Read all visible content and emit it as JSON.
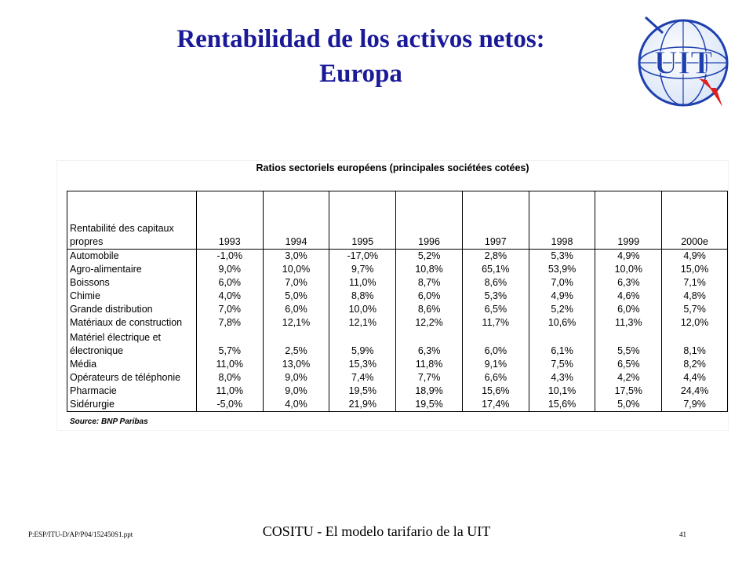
{
  "slide": {
    "title_line1": "Rentabilidad de los activos netos:",
    "title_line2": "Europa"
  },
  "logo": {
    "text": "UIT",
    "icon": "itu-globe-logo-icon",
    "color": "#1e40af",
    "accent": "#e11d1d"
  },
  "table": {
    "caption": "Ratios sectoriels européens (principales sociétées cotées)",
    "header_label": "Rentabilité des capitaux propres",
    "years": [
      "1993",
      "1994",
      "1995",
      "1996",
      "1997",
      "1998",
      "1999",
      "2000e"
    ],
    "rows": [
      {
        "sector": "Automobile",
        "values": [
          "-1,0%",
          "3,0%",
          "-17,0%",
          "5,2%",
          "2,8%",
          "5,3%",
          "4,9%",
          "4,9%"
        ]
      },
      {
        "sector": "Agro-alimentaire",
        "values": [
          "9,0%",
          "10,0%",
          "9,7%",
          "10,8%",
          "65,1%",
          "53,9%",
          "10,0%",
          "15,0%"
        ]
      },
      {
        "sector": "Boissons",
        "values": [
          "6,0%",
          "7,0%",
          "11,0%",
          "8,7%",
          "8,6%",
          "7,0%",
          "6,3%",
          "7,1%"
        ]
      },
      {
        "sector": "Chimie",
        "values": [
          "4,0%",
          "5,0%",
          "8,8%",
          "6,0%",
          "5,3%",
          "4,9%",
          "4,6%",
          "4,8%"
        ]
      },
      {
        "sector": "Grande distribution",
        "values": [
          "7,0%",
          "6,0%",
          "10,0%",
          "8,6%",
          "6,5%",
          "5,2%",
          "6,0%",
          "5,7%"
        ]
      },
      {
        "sector": "Matériaux de construction",
        "values": [
          "7,8%",
          "12,1%",
          "12,1%",
          "12,2%",
          "11,7%",
          "10,6%",
          "11,3%",
          "12,0%"
        ]
      },
      {
        "sector": "Matériel électrique et électronique",
        "values": [
          "5,7%",
          "2,5%",
          "5,9%",
          "6,3%",
          "6,0%",
          "6,1%",
          "5,5%",
          "8,1%"
        ]
      },
      {
        "sector": "Média",
        "values": [
          "11,0%",
          "13,0%",
          "15,3%",
          "11,8%",
          "9,1%",
          "7,5%",
          "6,5%",
          "8,2%"
        ]
      },
      {
        "sector": "Opérateurs de téléphonie",
        "values": [
          "8,0%",
          "9,0%",
          "7,4%",
          "7,7%",
          "6,6%",
          "4,3%",
          "4,2%",
          "4,4%"
        ]
      },
      {
        "sector": "Pharmacie",
        "values": [
          "11,0%",
          "9,0%",
          "19,5%",
          "18,9%",
          "15,6%",
          "10,1%",
          "17,5%",
          "24,4%"
        ]
      },
      {
        "sector": "Sidérurgie",
        "values": [
          "-5,0%",
          "4,0%",
          "21,9%",
          "19,5%",
          "17,4%",
          "15,6%",
          "5,0%",
          "7,9%"
        ]
      }
    ],
    "source": "Source: BNP Paribas"
  },
  "footer": {
    "left": "P:ESP/ITU-D/AP/P04/152450S1.ppt",
    "center": "COSITU - El modelo tarifario de la UIT",
    "page": "41"
  }
}
